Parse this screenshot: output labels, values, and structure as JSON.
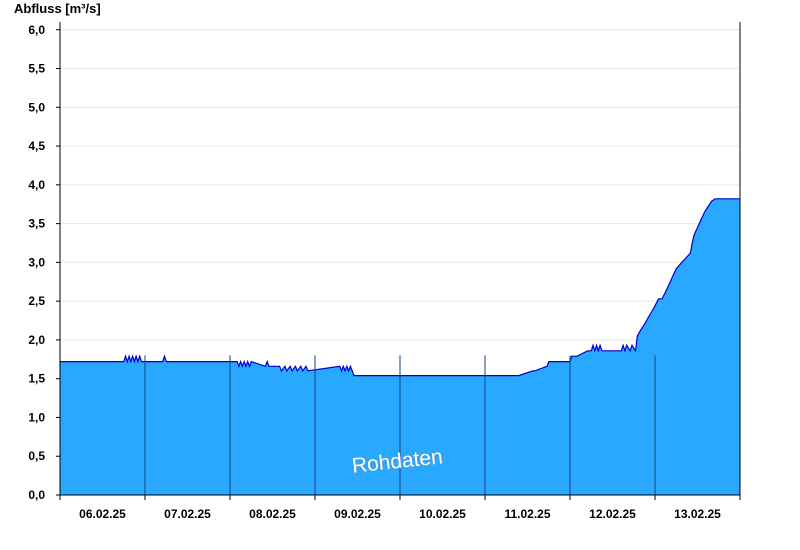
{
  "chart_data": {
    "type": "area",
    "ylabel": "Abfluss [m³/s]",
    "watermark": "Rohdaten",
    "ylim": [
      0,
      6.1
    ],
    "yticks": [
      {
        "value": 0,
        "label": "0,0"
      },
      {
        "value": 0.5,
        "label": "0,5"
      },
      {
        "value": 1.0,
        "label": "1,0"
      },
      {
        "value": 1.5,
        "label": "1,5"
      },
      {
        "value": 2.0,
        "label": "2,0"
      },
      {
        "value": 2.5,
        "label": "2,5"
      },
      {
        "value": 3.0,
        "label": "3,0"
      },
      {
        "value": 3.5,
        "label": "3,5"
      },
      {
        "value": 4.0,
        "label": "4,0"
      },
      {
        "value": 4.5,
        "label": "4,5"
      },
      {
        "value": 5.0,
        "label": "5,0"
      },
      {
        "value": 5.5,
        "label": "5,5"
      },
      {
        "value": 6.0,
        "label": "6,0"
      }
    ],
    "xlim": [
      "06.02.25 00:00",
      "14.02.25 00:00"
    ],
    "xticks": [
      "06.02.25",
      "07.02.25",
      "08.02.25",
      "09.02.25",
      "10.02.25",
      "11.02.25",
      "12.02.25",
      "13.02.25"
    ],
    "grid": true,
    "colors": {
      "fill": "#29a8ff",
      "line": "#0000cc",
      "grid": "#e6e6e6",
      "axis": "#000000",
      "divider": "#1a3f80"
    },
    "series": [
      {
        "x": [
          "06.02.25 00:00",
          "06.02.25 18:00",
          "06.02.25 18:30",
          "06.02.25 19:00",
          "06.02.25 19:30",
          "06.02.25 20:00",
          "06.02.25 20:30",
          "06.02.25 21:00",
          "06.02.25 21:30",
          "06.02.25 22:00",
          "06.02.25 22:30",
          "06.02.25 23:00",
          "07.02.25 05:00",
          "07.02.25 05:30",
          "07.02.25 06:00",
          "07.02.25 06:30",
          "07.02.25 23:59",
          "08.02.25 00:00",
          "08.02.25 02:00",
          "08.02.25 02:30",
          "08.02.25 03:00",
          "08.02.25 03:30",
          "08.02.25 04:00",
          "08.02.25 04:30",
          "08.02.25 05:00",
          "08.02.25 05:30",
          "08.02.25 06:00",
          "08.02.25 10:00",
          "08.02.25 10:30",
          "08.02.25 11:00",
          "08.02.25 12:00",
          "08.02.25 13:00",
          "08.02.25 14:00",
          "08.02.25 14:30",
          "08.02.25 15:30",
          "08.02.25 16:00",
          "08.02.25 17:00",
          "08.02.25 17:30",
          "08.02.25 18:30",
          "08.02.25 19:00",
          "08.02.25 20:00",
          "08.02.25 20:30",
          "08.02.25 21:30",
          "08.02.25 22:00",
          "09.02.25 07:00",
          "09.02.25 07:30",
          "09.02.25 08:00",
          "09.02.25 08:30",
          "09.02.25 09:00",
          "09.02.25 09:30",
          "09.02.25 10:00",
          "09.02.25 10:30",
          "09.02.25 11:00",
          "11.02.25 09:00",
          "11.02.25 09:30",
          "11.02.25 13:30",
          "11.02.25 14:00",
          "11.02.25 17:30",
          "11.02.25 18:00",
          "12.02.25 00:00",
          "12.02.25 00:30",
          "12.02.25 01:30",
          "12.02.25 02:00",
          "12.02.25 05:00",
          "12.02.25 05:30",
          "12.02.25 06:00",
          "12.02.25 06:30",
          "12.02.25 07:00",
          "12.02.25 07:30",
          "12.02.25 08:00",
          "12.02.25 08:30",
          "12.02.25 09:00",
          "12.02.25 14:30",
          "12.02.25 15:00",
          "12.02.25 15:30",
          "12.02.25 16:00",
          "12.02.25 17:00",
          "12.02.25 17:30",
          "12.02.25 18:30",
          "12.02.25 19:00",
          "12.02.25 20:00",
          "12.02.25 21:00",
          "12.02.25 22:00",
          "12.02.25 23:00",
          "13.02.25 00:00",
          "13.02.25 01:00",
          "13.02.25 02:00",
          "13.02.25 03:00",
          "13.02.25 04:00",
          "13.02.25 05:00",
          "13.02.25 06:00",
          "13.02.25 08:00",
          "13.02.25 10:00",
          "13.02.25 10:30",
          "13.02.25 11:00",
          "13.02.25 12:00",
          "13.02.25 13:00",
          "13.02.25 14:00",
          "13.02.25 15:00",
          "13.02.25 16:00",
          "13.02.25 17:00",
          "13.02.25 18:00",
          "13.02.25 19:00",
          "13.02.25 20:00",
          "13.02.25 21:00",
          "13.02.25 22:00",
          "13.02.25 23:59"
        ],
        "y": [
          1.72,
          1.72,
          1.79,
          1.72,
          1.79,
          1.72,
          1.79,
          1.72,
          1.79,
          1.72,
          1.79,
          1.72,
          1.72,
          1.79,
          1.72,
          1.72,
          1.72,
          1.72,
          1.72,
          1.66,
          1.72,
          1.66,
          1.72,
          1.66,
          1.72,
          1.66,
          1.72,
          1.66,
          1.72,
          1.66,
          1.66,
          1.66,
          1.66,
          1.6,
          1.66,
          1.6,
          1.66,
          1.6,
          1.66,
          1.6,
          1.66,
          1.6,
          1.66,
          1.6,
          1.66,
          1.6,
          1.66,
          1.6,
          1.66,
          1.6,
          1.66,
          1.6,
          1.54,
          1.54,
          1.54,
          1.6,
          1.6,
          1.66,
          1.72,
          1.72,
          1.79,
          1.79,
          1.79,
          1.86,
          1.86,
          1.86,
          1.93,
          1.86,
          1.93,
          1.86,
          1.93,
          1.86,
          1.86,
          1.93,
          1.86,
          1.93,
          1.86,
          1.93,
          1.86,
          2.05,
          2.13,
          2.2,
          2.28,
          2.36,
          2.44,
          2.53,
          2.53,
          2.62,
          2.72,
          2.82,
          2.92,
          3.02,
          3.12,
          3.25,
          3.35,
          3.45,
          3.55,
          3.65,
          3.72,
          3.79,
          3.82,
          3.82,
          3.82,
          3.82,
          3.82,
          3.82,
          3.82
        ]
      }
    ]
  }
}
